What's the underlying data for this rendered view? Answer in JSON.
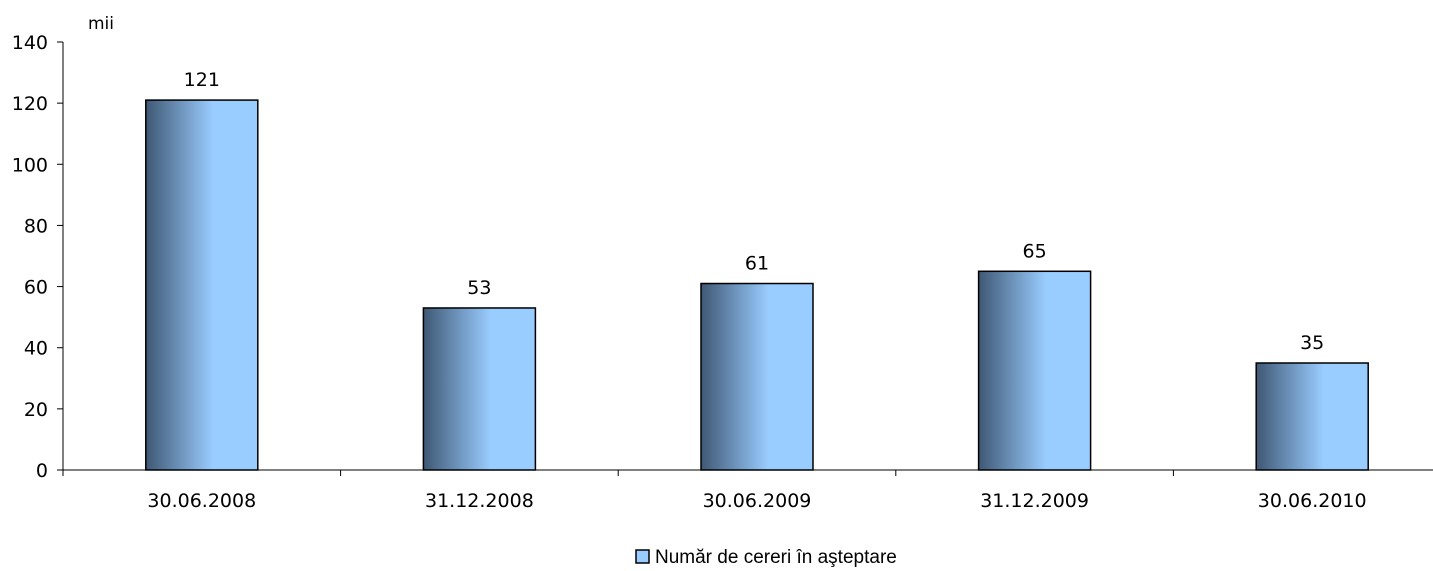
{
  "chart_data": {
    "type": "bar",
    "unit_label": "mii",
    "categories": [
      "30.06.2008",
      "31.12.2008",
      "30.06.2009",
      "31.12.2009",
      "30.06.2010"
    ],
    "series": [
      {
        "name": "Număr de cereri în aşteptare",
        "values": [
          121,
          53,
          61,
          65,
          35
        ]
      }
    ],
    "data_labels": [
      "121",
      "53",
      "61",
      "65",
      "35"
    ],
    "ylim": [
      0,
      140
    ],
    "yticks": [
      0,
      20,
      40,
      60,
      80,
      100,
      120,
      140
    ],
    "grid": false,
    "legend_position": "bottom",
    "colors": {
      "bar_dark": "#3f5874",
      "bar_light": "#99ccff",
      "bar_stroke": "#000000"
    }
  }
}
